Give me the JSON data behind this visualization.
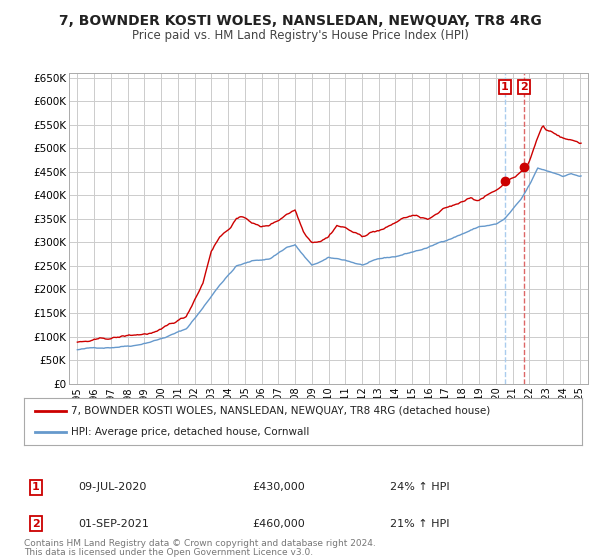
{
  "title": "7, BOWNDER KOSTI WOLES, NANSLEDAN, NEWQUAY, TR8 4RG",
  "subtitle": "Price paid vs. HM Land Registry's House Price Index (HPI)",
  "legend_line1": "7, BOWNDER KOSTI WOLES, NANSLEDAN, NEWQUAY, TR8 4RG (detached house)",
  "legend_line2": "HPI: Average price, detached house, Cornwall",
  "footer1": "Contains HM Land Registry data © Crown copyright and database right 2024.",
  "footer2": "This data is licensed under the Open Government Licence v3.0.",
  "red_color": "#cc0000",
  "blue_color": "#6699cc",
  "vline1_color": "#aaccee",
  "vline2_color": "#dd6666",
  "marker_color": "#cc0000",
  "grid_color": "#cccccc",
  "bg_color": "#ffffff",
  "annotation1": {
    "label": "1",
    "date": "09-JUL-2020",
    "price": "£430,000",
    "hpi": "24% ↑ HPI",
    "x": 2020.52
  },
  "annotation2": {
    "label": "2",
    "date": "01-SEP-2021",
    "price": "£460,000",
    "hpi": "21% ↑ HPI",
    "x": 2021.67
  },
  "marker1_y": 430000,
  "marker2_y": 460000,
  "ylim": [
    0,
    660000
  ],
  "xlim": [
    1994.5,
    2025.5
  ],
  "yticks": [
    0,
    50000,
    100000,
    150000,
    200000,
    250000,
    300000,
    350000,
    400000,
    450000,
    500000,
    550000,
    600000,
    650000
  ],
  "ytick_labels": [
    "£0",
    "£50K",
    "£100K",
    "£150K",
    "£200K",
    "£250K",
    "£300K",
    "£350K",
    "£400K",
    "£450K",
    "£500K",
    "£550K",
    "£600K",
    "£650K"
  ],
  "xticks": [
    1995,
    1996,
    1997,
    1998,
    1999,
    2000,
    2001,
    2002,
    2003,
    2004,
    2005,
    2006,
    2007,
    2008,
    2009,
    2010,
    2011,
    2012,
    2013,
    2014,
    2015,
    2016,
    2017,
    2018,
    2019,
    2020,
    2021,
    2022,
    2023,
    2024,
    2025
  ]
}
